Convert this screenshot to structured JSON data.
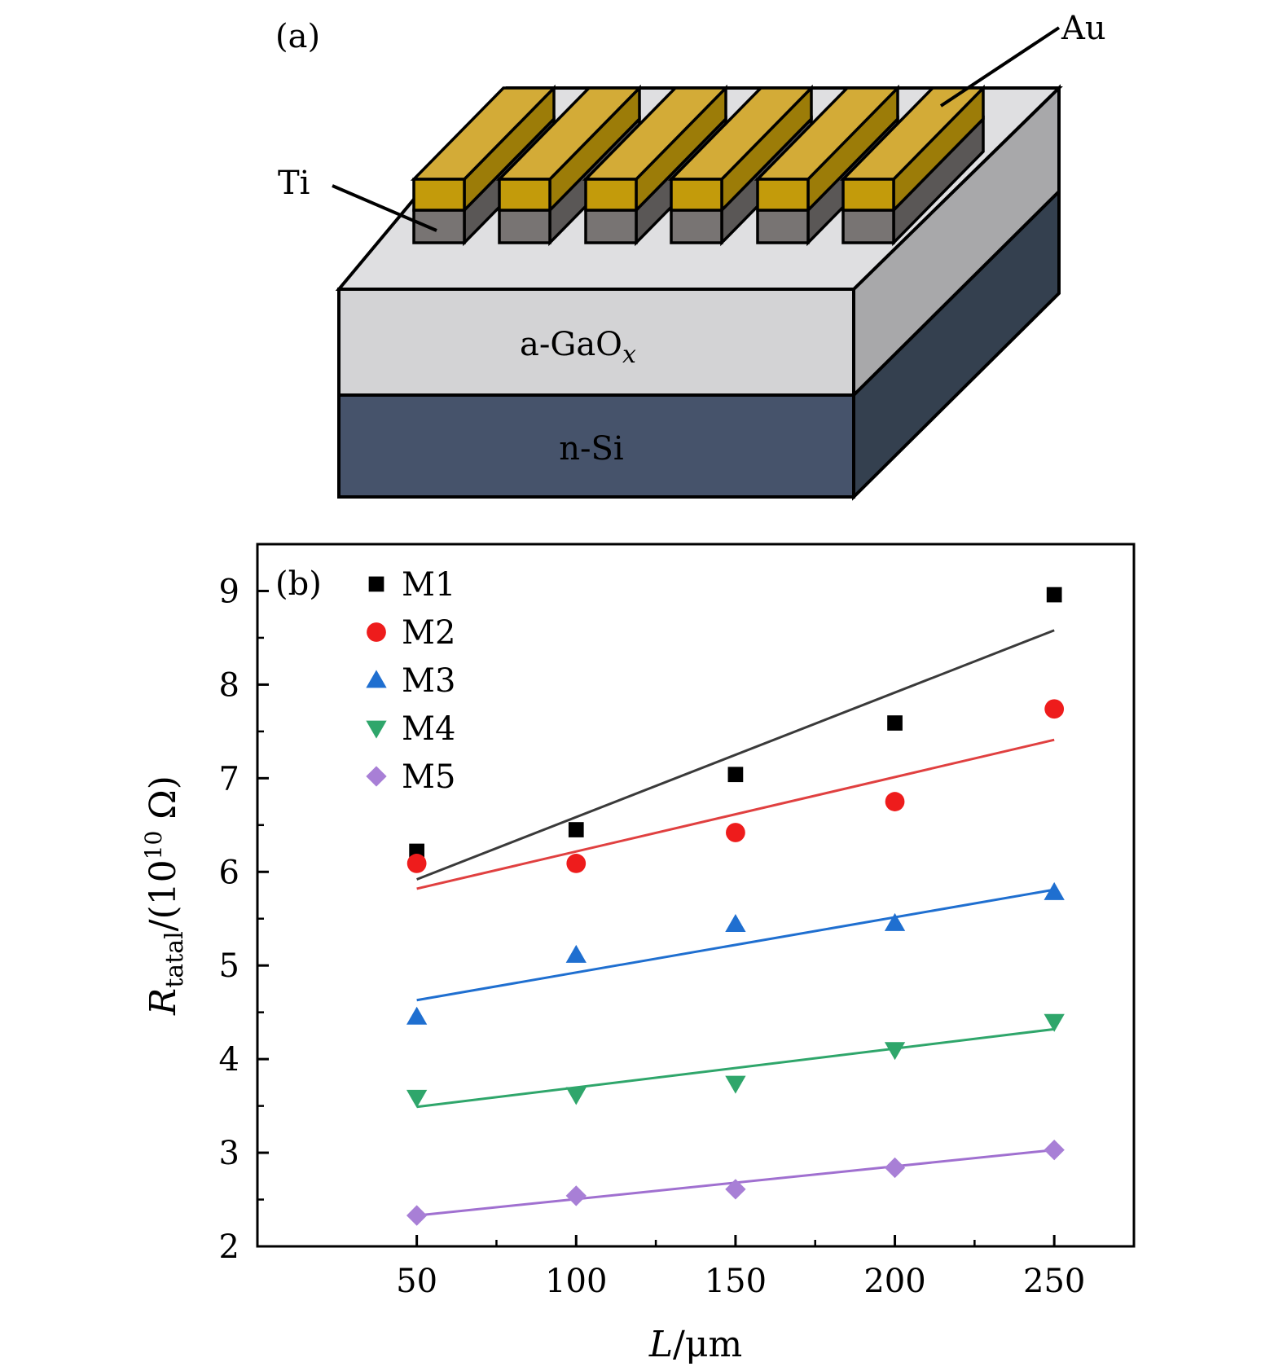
{
  "panel_a": {
    "panel_label": "(a)",
    "labels": {
      "au": "Au",
      "ti": "Ti",
      "oxide_base": "a-GaO",
      "oxide_sub": "x",
      "substrate": "n-Si"
    },
    "colors": {
      "au_front": "#c39b0b",
      "au_top": "#d3ab37",
      "au_side": "#9c7c08",
      "ti_front": "#787473",
      "ti_side": "#5a5756",
      "oxide_front": "#d3d3d5",
      "oxide_top": "#dfdfe1",
      "oxide_side": "#a8a8aa",
      "si_front": "#46536b",
      "si_side": "#34404f"
    }
  },
  "chart_data": {
    "type": "scatter",
    "panel_label": "(b)",
    "xlabel_var": "L",
    "xlabel_unit": "/μm",
    "ylabel_var": "R",
    "ylabel_sub": "tatal",
    "ylabel_unit_pre": "/(10",
    "ylabel_unit_exp": "10",
    "ylabel_unit_post": " Ω)",
    "xlim": [
      0,
      275
    ],
    "ylim": [
      2,
      9.5
    ],
    "xticks": [
      50,
      100,
      150,
      200,
      250
    ],
    "yticks": [
      2,
      3,
      4,
      5,
      6,
      7,
      8,
      9
    ],
    "x": [
      50,
      100,
      150,
      200,
      250
    ],
    "legend_position": "top-left",
    "series": [
      {
        "name": "M1",
        "marker": "square",
        "color": "#000000",
        "line_color": "#3a3a3a",
        "values": [
          6.22,
          6.45,
          7.04,
          7.59,
          8.96
        ],
        "fit": [
          5.92,
          8.58
        ]
      },
      {
        "name": "M2",
        "marker": "circle",
        "color": "#ee1c1c",
        "line_color": "#e04040",
        "values": [
          6.09,
          6.09,
          6.42,
          6.75,
          7.74
        ],
        "fit": [
          5.82,
          7.41
        ]
      },
      {
        "name": "M3",
        "marker": "triangle-up",
        "color": "#1f6fd0",
        "line_color": "#1f6fd0",
        "values": [
          4.45,
          5.11,
          5.44,
          5.45,
          5.78
        ],
        "fit": [
          4.63,
          5.81
        ]
      },
      {
        "name": "M4",
        "marker": "triangle-down",
        "color": "#2fa66b",
        "line_color": "#2fa66b",
        "values": [
          3.59,
          3.62,
          3.74,
          4.1,
          4.4
        ],
        "fit": [
          3.49,
          4.32
        ]
      },
      {
        "name": "M5",
        "marker": "diamond",
        "color": "#a87fd6",
        "line_color": "#a070d0",
        "values": [
          2.33,
          2.54,
          2.61,
          2.84,
          3.03
        ],
        "fit": [
          2.33,
          3.03
        ]
      }
    ]
  }
}
